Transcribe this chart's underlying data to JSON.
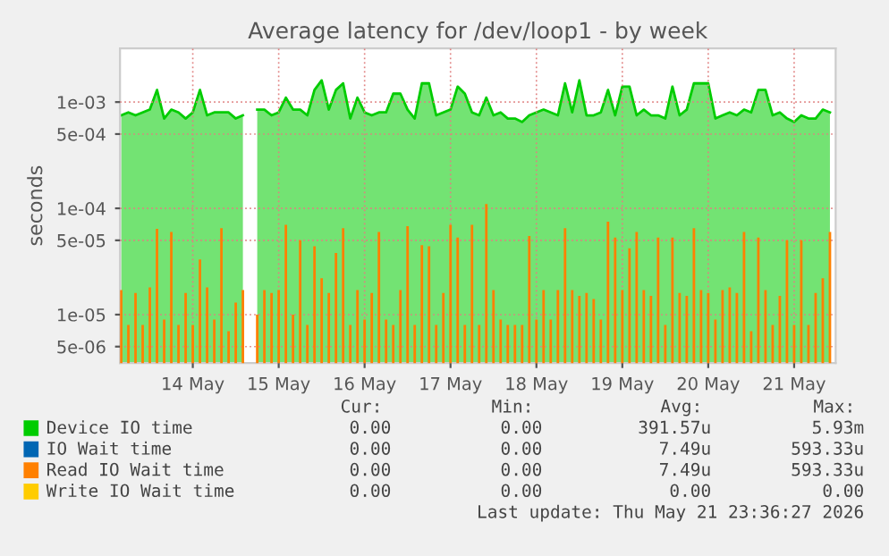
{
  "chart_data": {
    "type": "area",
    "title": "Average latency for /dev/loop1 - by week",
    "ylabel": "seconds",
    "x": [
      "2026-05-13T16:00",
      "2026-05-13T18:00",
      "2026-05-13T20:00",
      "2026-05-13T22:00",
      "2026-05-14T00:00",
      "2026-05-14T02:00",
      "2026-05-14T04:00",
      "2026-05-14T06:00",
      "2026-05-14T08:00",
      "2026-05-14T10:00",
      "2026-05-14T12:00",
      "2026-05-14T14:00",
      "2026-05-14T16:00",
      "2026-05-14T18:00",
      "2026-05-14T20:00",
      "2026-05-14T22:00",
      "2026-05-15T00:00",
      "2026-05-15T02:00",
      "2026-05-15T04:00",
      "2026-05-15T06:00",
      "2026-05-15T08:00",
      "2026-05-15T10:00",
      "2026-05-15T12:00",
      "2026-05-15T14:00",
      "2026-05-15T16:00",
      "2026-05-15T18:00",
      "2026-05-15T20:00",
      "2026-05-15T22:00",
      "2026-05-16T00:00",
      "2026-05-16T02:00",
      "2026-05-16T04:00",
      "2026-05-16T06:00",
      "2026-05-16T08:00",
      "2026-05-16T10:00",
      "2026-05-16T12:00",
      "2026-05-16T14:00",
      "2026-05-16T16:00",
      "2026-05-16T18:00",
      "2026-05-16T20:00",
      "2026-05-16T22:00",
      "2026-05-17T00:00",
      "2026-05-17T02:00",
      "2026-05-17T04:00",
      "2026-05-17T06:00",
      "2026-05-17T08:00",
      "2026-05-17T10:00",
      "2026-05-17T12:00",
      "2026-05-17T14:00",
      "2026-05-17T16:00",
      "2026-05-17T18:00",
      "2026-05-17T20:00",
      "2026-05-17T22:00",
      "2026-05-18T00:00",
      "2026-05-18T02:00",
      "2026-05-18T04:00",
      "2026-05-18T06:00",
      "2026-05-18T08:00",
      "2026-05-18T10:00",
      "2026-05-18T12:00",
      "2026-05-18T14:00",
      "2026-05-18T16:00",
      "2026-05-18T18:00",
      "2026-05-18T20:00",
      "2026-05-18T22:00",
      "2026-05-19T00:00",
      "2026-05-19T02:00",
      "2026-05-19T04:00",
      "2026-05-19T06:00",
      "2026-05-19T08:00",
      "2026-05-19T10:00",
      "2026-05-19T12:00",
      "2026-05-19T14:00",
      "2026-05-19T16:00",
      "2026-05-19T18:00",
      "2026-05-19T20:00",
      "2026-05-19T22:00",
      "2026-05-20T00:00",
      "2026-05-20T02:00",
      "2026-05-20T04:00",
      "2026-05-20T06:00",
      "2026-05-20T08:00",
      "2026-05-20T10:00",
      "2026-05-20T12:00",
      "2026-05-20T14:00",
      "2026-05-20T16:00",
      "2026-05-20T18:00",
      "2026-05-20T20:00",
      "2026-05-20T22:00",
      "2026-05-21T00:00",
      "2026-05-21T02:00",
      "2026-05-21T04:00",
      "2026-05-21T06:00",
      "2026-05-21T08:00",
      "2026-05-21T10:00",
      "2026-05-21T12:00",
      "2026-05-21T14:00",
      "2026-05-21T16:00",
      "2026-05-21T18:00",
      "2026-05-21T20:00",
      "2026-05-21T22:00"
    ],
    "series": [
      {
        "name": "Device IO time",
        "color": "#00cc00",
        "values": [
          0.00075,
          0.0008,
          0.00075,
          0.0008,
          0.00085,
          0.0013,
          0.0007,
          0.00085,
          0.0008,
          0.0007,
          0.0008,
          0.0013,
          0.00075,
          0.0008,
          0.0008,
          0.0008,
          0.0007,
          0.00075,
          null,
          0.00085,
          0.00085,
          0.00075,
          0.0008,
          0.0011,
          0.00085,
          0.00085,
          0.00075,
          0.0013,
          0.0016,
          0.00085,
          0.0013,
          0.0015,
          0.0007,
          0.0011,
          0.0008,
          0.00075,
          0.0008,
          0.0008,
          0.0012,
          0.0012,
          0.00085,
          0.0007,
          0.0015,
          0.0015,
          0.00075,
          0.0008,
          0.00085,
          0.0014,
          0.0012,
          0.0008,
          0.00075,
          0.0011,
          0.00075,
          0.0008,
          0.0007,
          0.0007,
          0.00065,
          0.00075,
          0.0008,
          0.00085,
          0.0008,
          0.00075,
          0.0015,
          0.0008,
          0.0016,
          0.00075,
          0.00075,
          0.0008,
          0.0013,
          0.00075,
          0.0014,
          0.0014,
          0.00075,
          0.00085,
          0.00075,
          0.00075,
          0.0007,
          0.0014,
          0.00075,
          0.00085,
          0.0015,
          0.0015,
          0.0015,
          0.0007,
          0.00075,
          0.0008,
          0.00075,
          0.00085,
          0.0008,
          0.0013,
          0.0013,
          0.00075,
          0.0008,
          0.0007,
          0.00065,
          0.00075,
          0.0007,
          0.0007,
          0.00085,
          0.0008
        ]
      },
      {
        "name": "IO Wait time",
        "color": "#0066b3",
        "type": "bar",
        "values": [
          null,
          null,
          null,
          null,
          null,
          null,
          null,
          null,
          null,
          null,
          null,
          null,
          null,
          null,
          null,
          null,
          null,
          null,
          null,
          null,
          null,
          null,
          null,
          null,
          null,
          null,
          null,
          null,
          null,
          null,
          null,
          null,
          null,
          null,
          null,
          null,
          null,
          null,
          null,
          null,
          null,
          null,
          null,
          null,
          null,
          null,
          null,
          null,
          null,
          null,
          null,
          null,
          null,
          null,
          null,
          null,
          null,
          null,
          null,
          null,
          null,
          null,
          null,
          null,
          null,
          null,
          null,
          null,
          null,
          null,
          null,
          null,
          null,
          null,
          null,
          null,
          null,
          null,
          null,
          null,
          null,
          null,
          null,
          null,
          null,
          null,
          null,
          null,
          null,
          null,
          null,
          null,
          null,
          null,
          null,
          null,
          null,
          null,
          null,
          null
        ]
      },
      {
        "name": "Read IO Wait time",
        "color": "#ff8000",
        "type": "bar",
        "values": [
          1.7e-05,
          8e-06,
          1.6e-05,
          8e-06,
          1.8e-05,
          6.4e-05,
          9e-06,
          6e-05,
          8e-06,
          1.6e-05,
          8e-06,
          3.3e-05,
          1.8e-05,
          9e-06,
          6.5e-05,
          7e-06,
          1.3e-05,
          1.7e-05,
          null,
          1e-05,
          1.7e-05,
          1.6e-05,
          1.7e-05,
          7e-05,
          1e-05,
          5e-05,
          8e-06,
          4.4e-05,
          2.2e-05,
          1.6e-05,
          3.8e-05,
          6.5e-05,
          8e-06,
          1.7e-05,
          9e-06,
          1.6e-05,
          6e-05,
          9e-06,
          8e-06,
          1.7e-05,
          6.8e-05,
          8e-06,
          4.5e-05,
          4.4e-05,
          8e-06,
          1.6e-05,
          7e-05,
          5.3e-05,
          8e-06,
          7e-05,
          8e-06,
          0.00011,
          1.7e-05,
          9e-06,
          8e-06,
          8e-06,
          8e-06,
          5.5e-05,
          9e-06,
          1.7e-05,
          9e-06,
          1.7e-05,
          6.5e-05,
          1.7e-05,
          1.5e-05,
          1.6e-05,
          1.4e-05,
          9e-06,
          7.5e-05,
          5.3e-05,
          1.7e-05,
          4.2e-05,
          6e-05,
          1.7e-05,
          1.5e-05,
          5.3e-05,
          8e-06,
          5.3e-05,
          1.6e-05,
          1.5e-05,
          6.5e-05,
          1.7e-05,
          1.6e-05,
          9e-06,
          1.7e-05,
          1.8e-05,
          1.6e-05,
          6e-05,
          7e-06,
          5.3e-05,
          1.7e-05,
          8e-06,
          1.5e-05,
          5e-05,
          8e-06,
          5e-05,
          8e-06,
          1.6e-05,
          2.2e-05,
          6e-05
        ]
      },
      {
        "name": "Write IO Wait time",
        "color": "#ffcc00",
        "type": "bar",
        "values": [
          null,
          null,
          null,
          null,
          null,
          null,
          null,
          null,
          null,
          null,
          null,
          null,
          null,
          null,
          null,
          null,
          null,
          null,
          null,
          null,
          null,
          null,
          null,
          null,
          null,
          null,
          null,
          null,
          null,
          null,
          null,
          null,
          null,
          null,
          null,
          null,
          null,
          null,
          null,
          null,
          null,
          null,
          null,
          null,
          null,
          null,
          null,
          null,
          null,
          null,
          null,
          null,
          null,
          null,
          null,
          null,
          null,
          null,
          null,
          null,
          null,
          null,
          null,
          null,
          null,
          null,
          null,
          null,
          null,
          null,
          null,
          null,
          null,
          null,
          null,
          null,
          null,
          null,
          null,
          null,
          null,
          null,
          null,
          null,
          null,
          null,
          null,
          null,
          null,
          null,
          null,
          null,
          null,
          null,
          null,
          null,
          null,
          null,
          null,
          null
        ]
      }
    ],
    "log": "y",
    "xlim": [
      "2026-05-13T15:40",
      "2026-05-21T23:36"
    ],
    "xticks": [
      {
        "value": "2026-05-14T12:00",
        "label": "14 May"
      },
      {
        "value": "2026-05-15T12:00",
        "label": "15 May"
      },
      {
        "value": "2026-05-16T12:00",
        "label": "16 May"
      },
      {
        "value": "2026-05-17T12:00",
        "label": "17 May"
      },
      {
        "value": "2026-05-18T12:00",
        "label": "18 May"
      },
      {
        "value": "2026-05-19T12:00",
        "label": "19 May"
      },
      {
        "value": "2026-05-20T12:00",
        "label": "20 May"
      },
      {
        "value": "2026-05-21T12:00",
        "label": "21 May"
      }
    ],
    "ylim": [
      3.5e-06,
      0.0032
    ],
    "yticks": [
      {
        "value": 0.001,
        "label": "1e-03"
      },
      {
        "value": 0.0005,
        "label": "5e-04"
      },
      {
        "value": 0.0001,
        "label": "1e-04"
      },
      {
        "value": 5e-05,
        "label": "5e-05"
      },
      {
        "value": 1e-05,
        "label": "1e-05"
      },
      {
        "value": 5e-06,
        "label": "5e-06"
      }
    ],
    "grid": true,
    "legend": "bottom",
    "annotations": [
      "Cur:",
      "Min:",
      "Avg:",
      "Max:",
      "0.00",
      "0.00",
      "391.57u",
      "5.93m",
      "0.00",
      "0.00",
      "7.49u",
      "593.33u",
      "0.00",
      "0.00",
      "7.49u",
      "593.33u",
      "0.00",
      "0.00",
      "0.00",
      "0.00",
      "Last update: Thu May 21 23:36:27 2026"
    ]
  }
}
